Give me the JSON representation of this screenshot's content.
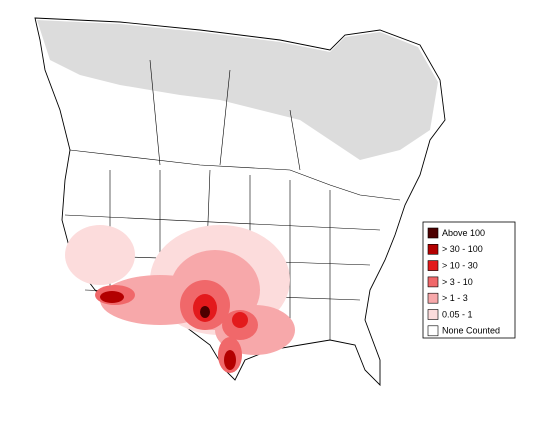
{
  "legend": {
    "items": [
      {
        "label": "Above 100",
        "color": "#4d0000"
      },
      {
        "label": "> 30 - 100",
        "color": "#b30000"
      },
      {
        "label": "> 10 - 30",
        "color": "#e31a1c"
      },
      {
        "label": "> 3 - 10",
        "color": "#f0686a"
      },
      {
        "label": "> 1 - 3",
        "color": "#f7a8aa"
      },
      {
        "label": "0.05 - 1",
        "color": "#fcdcdc"
      },
      {
        "label": "None Counted",
        "color": "#ffffff"
      }
    ]
  }
}
